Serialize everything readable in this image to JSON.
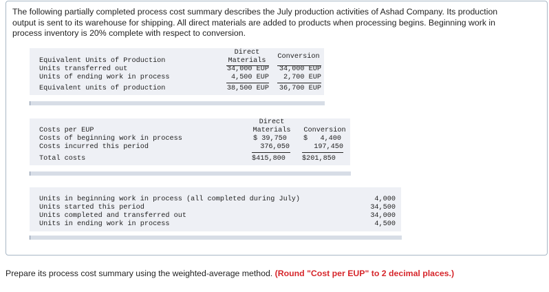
{
  "intro": "The following partially completed process cost summary describes the July production activities of Ashad Company. Its production output is sent to its warehouse for shipping. All direct materials are added to products when processing begins. Beginning work in process inventory is 20% complete with respect to conversion.",
  "eup_table": {
    "header_label": "Equivalent Units of Production",
    "col1_line1": "Direct",
    "col1_line2": "Materials",
    "col2": "Conversion",
    "rows": [
      {
        "label": "Units transferred out",
        "dm": "34,000 EUP",
        "conv": "34,000 EUP"
      },
      {
        "label": "Units of ending work in process",
        "dm": "4,500 EUP",
        "conv": "2,700 EUP"
      },
      {
        "label": "Equivalent units of production",
        "dm": "38,500 EUP",
        "conv": "36,700 EUP"
      }
    ]
  },
  "cost_table": {
    "header_label": "Costs per EUP",
    "col1_line1": "Direct",
    "col1_line2": "Materials",
    "col2": "Conversion",
    "rows": [
      {
        "label": "Costs of beginning work in process",
        "dm": "$ 39,750",
        "conv": "$   4,400"
      },
      {
        "label": "Costs incurred this period",
        "dm": "376,050",
        "conv": "197,450"
      },
      {
        "label": "Total costs",
        "dm": "$415,800",
        "conv": "$201,850"
      }
    ]
  },
  "units_table": {
    "rows": [
      {
        "label": "Units in beginning work in process (all completed during July)",
        "value": "4,000"
      },
      {
        "label": "Units started this period",
        "value": "34,500"
      },
      {
        "label": "Units completed and transferred out",
        "value": "34,000"
      },
      {
        "label": "Units in ending work in process",
        "value": "4,500"
      }
    ]
  },
  "footer": {
    "text": "Prepare its process cost summary using the weighted-average method.",
    "note": "(Round \"Cost per EUP\" to 2 decimal places.)"
  }
}
